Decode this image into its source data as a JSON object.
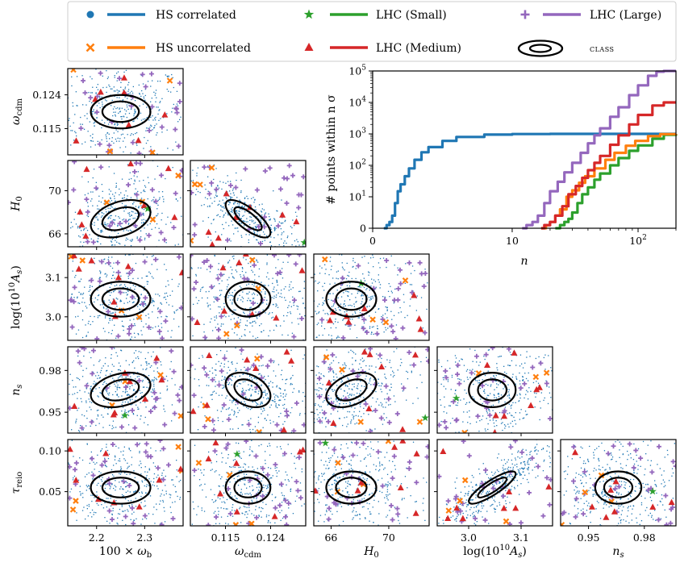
{
  "chart_data": {
    "type": "scatter",
    "title": "",
    "legend": {
      "position": "top",
      "entries": [
        {
          "name": "HS correlated",
          "marker": "dot",
          "color": "#1f77b4"
        },
        {
          "name": "HS uncorrelated",
          "marker": "x",
          "color": "#ff7f0e"
        },
        {
          "name": "LHC (Small)",
          "marker": "star",
          "color": "#2ca02c"
        },
        {
          "name": "LHC (Medium)",
          "marker": "triangle",
          "color": "#d62728"
        },
        {
          "name": "LHC (Large)",
          "marker": "plus",
          "color": "#9467bd"
        },
        {
          "name": "CLASS",
          "marker": "ellipse",
          "color": "#000000"
        }
      ]
    },
    "parameters": [
      {
        "key": "wb",
        "label": "100 × ω_b",
        "range": [
          2.14,
          2.38
        ],
        "ticks": [
          2.2,
          2.3
        ],
        "tick_labels": [
          "2.2",
          "2.3"
        ],
        "center": 2.25,
        "sigma": 0.025
      },
      {
        "key": "wcdm",
        "label": "ω_cdm",
        "range": [
          0.108,
          0.131
        ],
        "ticks": [
          0.115,
          0.124
        ],
        "tick_labels": [
          "0.115",
          "0.124"
        ],
        "center": 0.1195,
        "sigma": 0.0018
      },
      {
        "key": "H0",
        "label": "H_0",
        "range": [
          64.8,
          72.8
        ],
        "ticks": [
          66,
          70
        ],
        "tick_labels": [
          "66",
          "70"
        ],
        "center": 67.4,
        "sigma": 0.7
      },
      {
        "key": "logAs",
        "label": "log(10^10 A_s)",
        "range": [
          2.94,
          3.16
        ],
        "ticks": [
          3.0,
          3.1
        ],
        "tick_labels": [
          "3.0",
          "3.1"
        ],
        "center": 3.045,
        "sigma": 0.018
      },
      {
        "key": "ns",
        "label": "n_s",
        "range": [
          0.935,
          0.997
        ],
        "ticks": [
          0.95,
          0.98
        ],
        "tick_labels": [
          "0.95",
          "0.98"
        ],
        "center": 0.966,
        "sigma": 0.005
      },
      {
        "key": "tau",
        "label": "τ_reio",
        "range": [
          0.008,
          0.114
        ],
        "ticks": [
          0.05,
          0.1
        ],
        "tick_labels": [
          "0.05",
          "0.10"
        ],
        "center": 0.055,
        "sigma": 0.008
      }
    ],
    "correlations": {
      "wcdm-H0": -0.75,
      "logAs-tau": 0.85,
      "wb-H0": 0.35,
      "wcdm-ns": -0.35,
      "H0-ns": 0.4,
      "wb-ns": 0.3
    },
    "sample_counts": {
      "HS correlated": 1000,
      "HS uncorrelated": 1000,
      "LHC (Small)": 1000,
      "LHC (Medium)": 10000,
      "LHC (Large)": 100000
    },
    "counts_inset": {
      "type": "line",
      "xlabel": "n",
      "ylabel": "# points within n σ",
      "xscale": "symlog",
      "xlim": [
        0,
        200
      ],
      "ylim": [
        0,
        100000
      ],
      "xticks": [
        0,
        10,
        100
      ],
      "xtick_labels": [
        "0",
        "10",
        "10^2"
      ],
      "yticks": [
        0,
        10,
        100,
        1000,
        10000,
        100000
      ],
      "ytick_labels": [
        "0",
        "10^1",
        "10^2",
        "10^3",
        "10^4",
        "10^5"
      ],
      "series": [
        {
          "name": "HS correlated",
          "color": "#1f77b4",
          "x": [
            0.8,
            1.0,
            1.2,
            1.4,
            1.6,
            1.8,
            2.0,
            2.3,
            2.6,
            3.0,
            3.5,
            4.0,
            5.0,
            6.0,
            8.0,
            10.0,
            20.0,
            50.0,
            200.0
          ],
          "y": [
            0,
            1,
            2,
            4,
            8,
            15,
            25,
            45,
            80,
            150,
            260,
            380,
            600,
            800,
            950,
            990,
            1000,
            1000,
            1000
          ]
        },
        {
          "name": "LHC (Small)",
          "color": "#2ca02c",
          "x": [
            22,
            24,
            26,
            28,
            30,
            33,
            36,
            40,
            45,
            50,
            60,
            70,
            85,
            100,
            130,
            160,
            200
          ],
          "y": [
            0,
            1,
            2,
            3,
            5,
            8,
            12,
            20,
            35,
            55,
            100,
            170,
            290,
            430,
            700,
            930,
            1000
          ]
        },
        {
          "name": "HS uncorrelated",
          "color": "#ff7f0e",
          "x": [
            17,
            18.5,
            20,
            22,
            24,
            27,
            30,
            34,
            38,
            45,
            55,
            65,
            80,
            95,
            120,
            150,
            200
          ],
          "y": [
            0,
            1,
            2,
            4,
            6,
            10,
            16,
            28,
            45,
            80,
            150,
            250,
            420,
            600,
            850,
            980,
            1000
          ]
        },
        {
          "name": "LHC (Medium)",
          "color": "#d62728",
          "x": [
            17,
            18,
            20,
            22,
            25,
            28,
            32,
            36,
            40,
            45,
            50,
            60,
            70,
            85,
            100,
            130,
            160,
            200
          ],
          "y": [
            0,
            1,
            2,
            4,
            7,
            12,
            22,
            40,
            70,
            120,
            200,
            450,
            900,
            2000,
            4000,
            8000,
            10000,
            10000
          ]
        },
        {
          "name": "LHC (Large)",
          "color": "#9467bd",
          "x": [
            12,
            13,
            14.5,
            16,
            18,
            20,
            23,
            26,
            30,
            35,
            40,
            45,
            50,
            60,
            70,
            85,
            100,
            120,
            140,
            160,
            200
          ],
          "y": [
            0,
            1,
            2,
            4,
            8,
            15,
            30,
            60,
            120,
            250,
            500,
            900,
            1500,
            3500,
            7000,
            17000,
            35000,
            70000,
            95000,
            100000,
            100000
          ]
        }
      ]
    }
  }
}
